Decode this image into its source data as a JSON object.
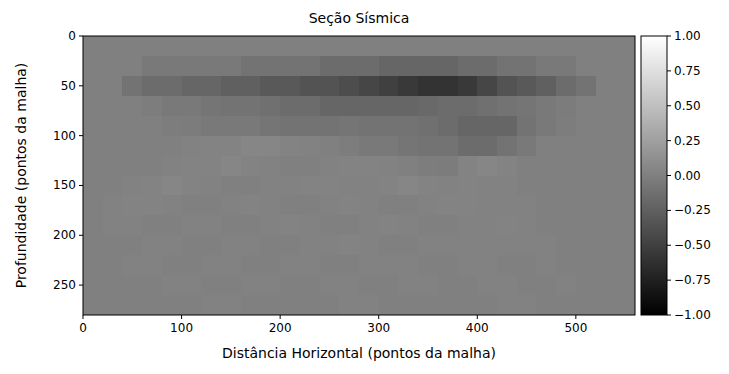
{
  "chart_data": {
    "type": "heatmap",
    "title": "Seção Sísmica",
    "x_label": "Distância Horizontal (pontos da malha)",
    "y_label": "Profundidade (pontos da malha)",
    "color": "gray",
    "xlim": [
      0,
      560
    ],
    "ylim": [
      280,
      0
    ],
    "xticks": [
      0,
      100,
      200,
      300,
      400,
      500
    ],
    "yticks": [
      0,
      50,
      100,
      150,
      200,
      250
    ],
    "x_edges": [
      0,
      20,
      40,
      60,
      80,
      100,
      120,
      140,
      160,
      180,
      200,
      220,
      240,
      260,
      280,
      300,
      320,
      340,
      360,
      380,
      400,
      420,
      440,
      460,
      480,
      500,
      520,
      540,
      560
    ],
    "y_edges": [
      0,
      20,
      40,
      60,
      80,
      100,
      120,
      140,
      160,
      180,
      200,
      220,
      240,
      260,
      280
    ],
    "cells": [
      [
        0,
        0,
        0,
        0,
        0,
        0,
        0,
        0,
        0,
        0,
        0,
        0,
        0,
        0,
        0,
        0,
        0,
        0,
        0,
        0,
        0,
        0,
        0,
        0,
        0,
        0,
        0,
        0
      ],
      [
        0,
        0,
        0,
        -0.05,
        -0.05,
        -0.05,
        -0.05,
        -0.05,
        -0.1,
        -0.1,
        -0.1,
        -0.1,
        -0.15,
        -0.15,
        -0.15,
        -0.2,
        -0.2,
        -0.2,
        -0.2,
        -0.15,
        -0.15,
        -0.1,
        -0.1,
        -0.05,
        -0.05,
        0,
        0,
        0
      ],
      [
        0,
        0,
        -0.1,
        -0.15,
        -0.15,
        -0.2,
        -0.2,
        -0.25,
        -0.25,
        -0.3,
        -0.3,
        -0.35,
        -0.35,
        -0.4,
        -0.45,
        -0.5,
        -0.55,
        -0.6,
        -0.6,
        -0.55,
        -0.45,
        -0.35,
        -0.3,
        -0.25,
        -0.15,
        -0.1,
        0,
        0
      ],
      [
        0,
        0,
        0,
        -0.02,
        -0.05,
        -0.05,
        -0.08,
        -0.1,
        -0.1,
        -0.12,
        -0.15,
        -0.15,
        -0.2,
        -0.2,
        -0.2,
        -0.2,
        -0.2,
        -0.18,
        -0.15,
        -0.15,
        -0.12,
        -0.1,
        -0.08,
        -0.05,
        -0.03,
        0,
        0,
        0
      ],
      [
        0,
        0,
        0,
        0,
        -0.02,
        -0.03,
        -0.05,
        -0.05,
        -0.05,
        -0.08,
        -0.1,
        -0.1,
        -0.1,
        -0.08,
        -0.1,
        -0.1,
        -0.1,
        -0.12,
        -0.15,
        -0.2,
        -0.2,
        -0.2,
        -0.1,
        -0.05,
        -0.02,
        0,
        0,
        0
      ],
      [
        0,
        0,
        0,
        0,
        0,
        0.02,
        0.03,
        0.03,
        0.05,
        0.05,
        0.03,
        0.02,
        0,
        -0.02,
        -0.05,
        -0.05,
        -0.08,
        -0.1,
        -0.1,
        -0.15,
        -0.15,
        -0.1,
        -0.05,
        0,
        0,
        0,
        0,
        0
      ],
      [
        0,
        0,
        0,
        0,
        0.02,
        0.03,
        0.03,
        0.05,
        0.03,
        0.02,
        0,
        0,
        0.02,
        0.03,
        0.03,
        0.02,
        0,
        -0.02,
        -0.03,
        0.03,
        0.05,
        0.03,
        0,
        0,
        0,
        0,
        0,
        0
      ],
      [
        0,
        0,
        0.02,
        0.03,
        0.05,
        0.03,
        0.02,
        0,
        0,
        0.02,
        0.02,
        0.03,
        0.03,
        0.02,
        0.02,
        0.03,
        0.05,
        0.03,
        0.02,
        0.03,
        0.02,
        0.02,
        0,
        0,
        0,
        0,
        0,
        0
      ],
      [
        0,
        0.02,
        0.03,
        0.03,
        0.02,
        0,
        0,
        0.02,
        0.03,
        0.02,
        0,
        0,
        0.02,
        0.03,
        0.02,
        0,
        0,
        0.02,
        0.03,
        0.03,
        0.02,
        0.02,
        0.02,
        0,
        0,
        0,
        0,
        0
      ],
      [
        0,
        0.02,
        0.02,
        0,
        0,
        0.02,
        0.02,
        0,
        0,
        0.02,
        0.03,
        0.02,
        0,
        0,
        0.02,
        0.03,
        0.02,
        0,
        0,
        0.02,
        0.02,
        0.03,
        0.02,
        0,
        0,
        0,
        0,
        0
      ],
      [
        0,
        0,
        0,
        0.02,
        0.02,
        0,
        0,
        0.02,
        0.02,
        0,
        0,
        0.02,
        0.02,
        0.03,
        0.02,
        0,
        0,
        0.02,
        0.02,
        0.02,
        0.02,
        0.02,
        0.02,
        0.02,
        0,
        0,
        0,
        0
      ],
      [
        0,
        0,
        0.02,
        0.02,
        0,
        0,
        0.02,
        0.02,
        0,
        0,
        0.02,
        0.02,
        0,
        0,
        0.02,
        0.02,
        0.02,
        0,
        0,
        0.02,
        0.02,
        0,
        0,
        0.02,
        0,
        0,
        0,
        0
      ],
      [
        0,
        0,
        0,
        0,
        0.02,
        0.02,
        0,
        0,
        0.02,
        0.02,
        0,
        0,
        0.02,
        0.02,
        0,
        0,
        0.02,
        0.02,
        0,
        0,
        0.02,
        0.02,
        0,
        0,
        0.02,
        0,
        0,
        0
      ],
      [
        0,
        0,
        0,
        0,
        0,
        0,
        0.02,
        0.02,
        0,
        0,
        0,
        0,
        0,
        0.02,
        0.02,
        0,
        0,
        0,
        0,
        0,
        0,
        0.02,
        0.02,
        0,
        0,
        0,
        0,
        0
      ]
    ],
    "colorbar_range": [
      -1,
      1
    ],
    "colorbar_ticks": [
      {
        "value": 1,
        "label": "1.00"
      },
      {
        "value": 0.75,
        "label": "0.75"
      },
      {
        "value": 0.5,
        "label": "0.50"
      },
      {
        "value": 0.25,
        "label": "0.25"
      },
      {
        "value": 0,
        "label": "0.00"
      },
      {
        "value": -0.25,
        "label": "−0.25"
      },
      {
        "value": -0.5,
        "label": "−0.50"
      },
      {
        "value": -0.75,
        "label": "−0.75"
      },
      {
        "value": -1,
        "label": "−1.00"
      }
    ]
  }
}
